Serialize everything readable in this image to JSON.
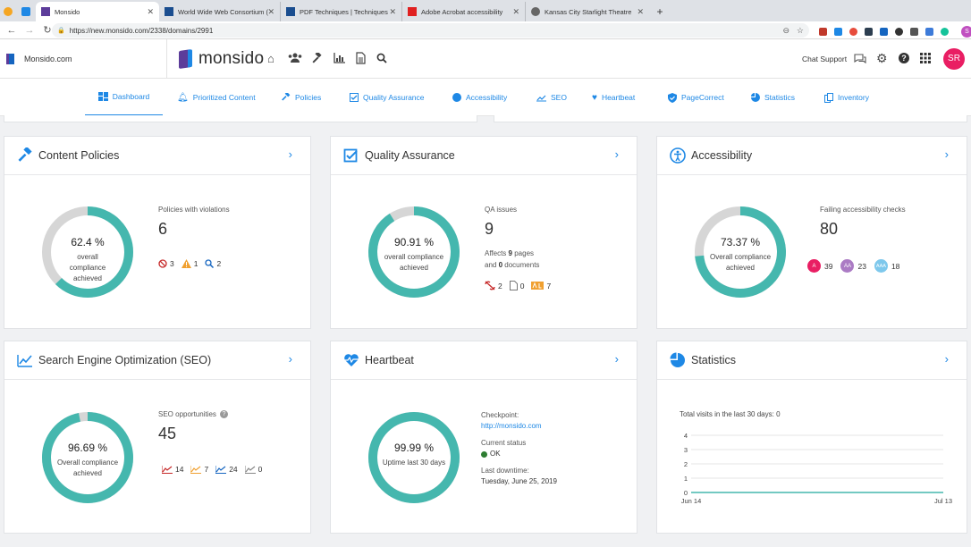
{
  "browser": {
    "tabs": [
      {
        "title": "Monsido",
        "active": true
      },
      {
        "title": "World Wide Web Consortium (",
        "active": false
      },
      {
        "title": "PDF Techniques | Techniques",
        "active": false
      },
      {
        "title": "Adobe Acrobat accessibility",
        "active": false
      },
      {
        "title": "Kansas City Starlight Theatre",
        "active": false
      }
    ],
    "new_tab": "+",
    "url": "https://new.monsido.com/2338/domains/2991",
    "profile_initial": "S"
  },
  "header": {
    "domain": "Monsido.com",
    "logo_text": "monsido",
    "chat_support": "Chat Support",
    "avatar": "SR"
  },
  "nav": [
    {
      "label": "Dashboard",
      "icon": "dashboard-icon",
      "active": true
    },
    {
      "label": "Prioritized Content",
      "icon": "bell-icon"
    },
    {
      "label": "Policies",
      "icon": "gavel-icon"
    },
    {
      "label": "Quality Assurance",
      "icon": "check-square-icon"
    },
    {
      "label": "Accessibility",
      "icon": "accessibility-icon"
    },
    {
      "label": "SEO",
      "icon": "trend-icon"
    },
    {
      "label": "Heartbeat",
      "icon": "heart-pulse-icon"
    },
    {
      "label": "PageCorrect",
      "icon": "shield-icon"
    },
    {
      "label": "Statistics",
      "icon": "pie-icon"
    },
    {
      "label": "Inventory",
      "icon": "copy-icon"
    }
  ],
  "cards": {
    "policies": {
      "title": "Content Policies",
      "percent": "62.4 %",
      "fraction": 0.624,
      "sub": "overall compliance achieved",
      "stat_label": "Policies with violations",
      "stat_value": "6",
      "badges": [
        "3",
        "1",
        "2"
      ]
    },
    "qa": {
      "title": "Quality Assurance",
      "percent": "90.91 %",
      "fraction": 0.9091,
      "sub": "overall compliance achieved",
      "stat_label": "QA issues",
      "stat_value": "9",
      "affects": "Affects",
      "pages_count": "9",
      "pages": "pages",
      "and": "and",
      "docs_count": "0",
      "docs": "documents",
      "badges": [
        "2",
        "0",
        "7"
      ]
    },
    "accessibility": {
      "title": "Accessibility",
      "percent": "73.37 %",
      "fraction": 0.7337,
      "sub": "Overall compliance achieved",
      "stat_label": "Failing accessibility checks",
      "stat_value": "80",
      "levels": [
        {
          "name": "A",
          "count": "39",
          "color": "#e91e63"
        },
        {
          "name": "AA",
          "count": "23",
          "color": "#ab7bc4"
        },
        {
          "name": "AAA",
          "count": "18",
          "color": "#7ec8ec"
        }
      ]
    },
    "seo": {
      "title": "Search Engine Optimization (SEO)",
      "percent": "96.69 %",
      "fraction": 0.9669,
      "sub": "Overall compliance achieved",
      "stat_label": "SEO opportunities",
      "stat_value": "45",
      "badges": [
        "14",
        "7",
        "24",
        "0"
      ]
    },
    "heartbeat": {
      "title": "Heartbeat",
      "percent": "99.99 %",
      "fraction": 0.9999,
      "sub": "Uptime last 30 days",
      "checkpoint_label": "Checkpoint:",
      "checkpoint_url": "http://monsido.com",
      "status_label": "Current status",
      "status": "OK",
      "downtime_label": "Last downtime:",
      "downtime": "Tuesday, June 25, 2019"
    },
    "statistics": {
      "title": "Statistics",
      "visits_label": "Total visits in the last 30 days:",
      "visits_value": "0"
    }
  },
  "chart_data": {
    "type": "line",
    "x": [
      "Jun 14",
      "Jul 13"
    ],
    "values": [
      0,
      0
    ],
    "yticks": [
      "0",
      "1",
      "2",
      "3",
      "4"
    ],
    "ylim": [
      0,
      4
    ],
    "xlabel": "",
    "ylabel": ""
  },
  "colors": {
    "accent": "#1e88e5",
    "donut": "#45b7ae",
    "donut_bg": "#d6d6d6",
    "logo": "#5c3c9a"
  }
}
